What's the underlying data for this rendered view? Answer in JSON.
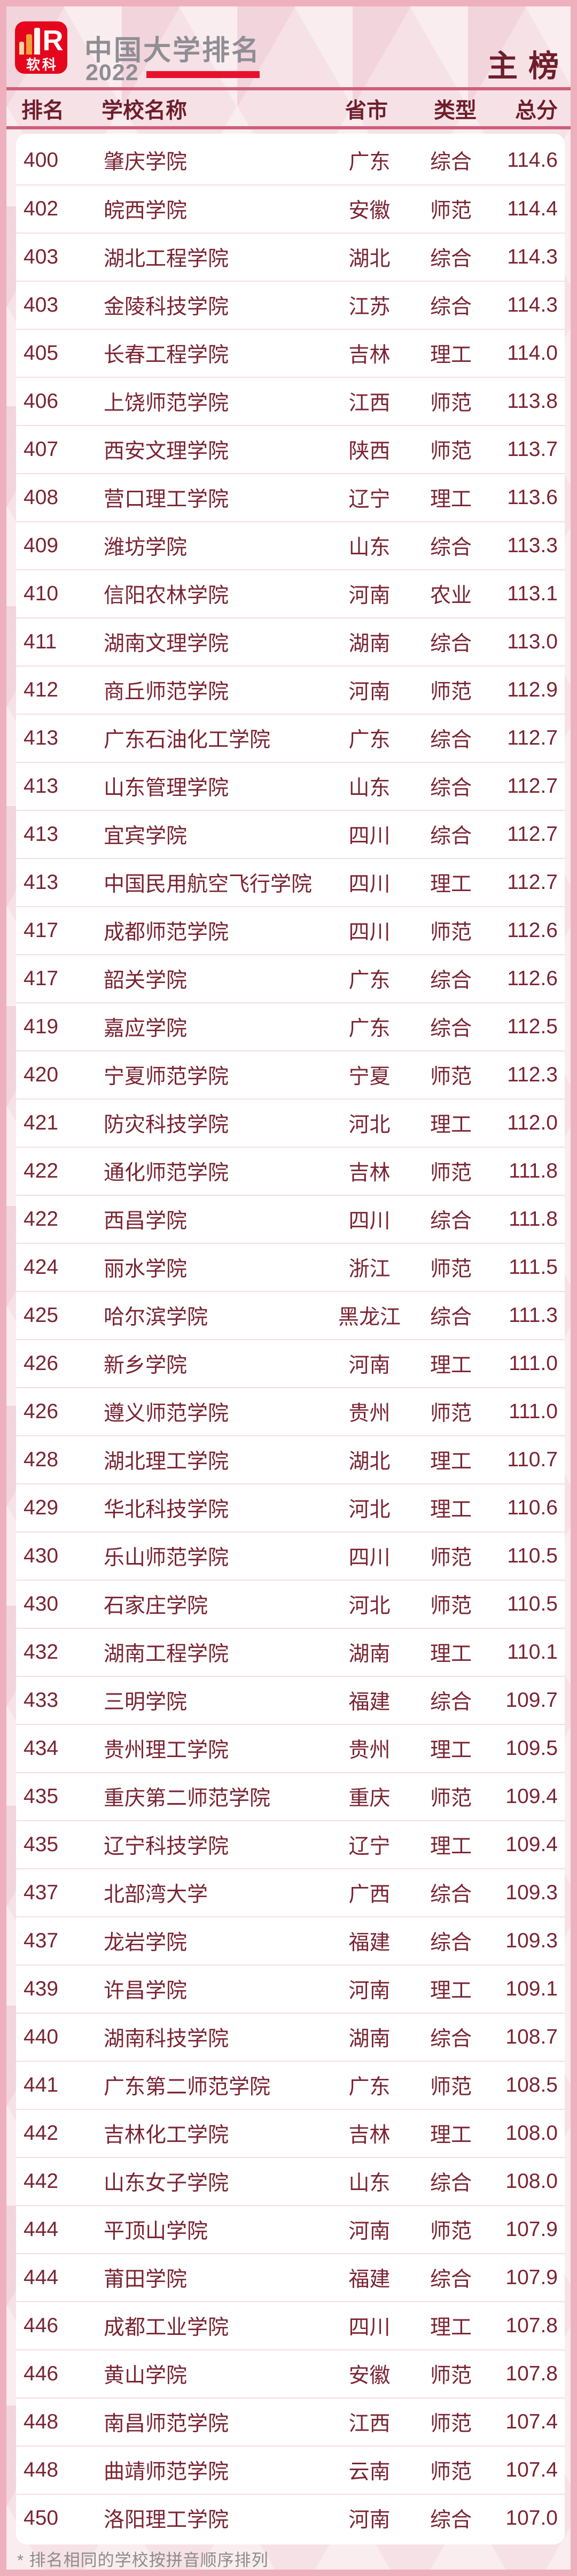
{
  "header": {
    "logo": {
      "brand": "软科",
      "letter": "R"
    },
    "title": "中国大学排名",
    "year": "2022",
    "badge": "主 榜"
  },
  "colors": {
    "logo_red": "#e5051c",
    "underline_red": "#e8112d",
    "rule_rose": "#ce6079",
    "row_text_maroon": "#7a2433",
    "header_text_maroon": "#6e1e2c",
    "title_gray": "#8e8e93",
    "note_gray": "#8c8c8c",
    "background_pink": "#f6e1e6",
    "border_pink": "#efb0be",
    "card_white": "#ffffff",
    "row_separator_pink": "#f5dde2"
  },
  "footer": {
    "note": "* 排名相同的学校按拼音顺序排列"
  },
  "chart_data": {
    "type": "table",
    "title": "中国大学排名 2022 主榜",
    "columns": [
      "排名",
      "学校名称",
      "省市",
      "类型",
      "总分"
    ],
    "rows": [
      {
        "rank": "400",
        "name": "肇庆学院",
        "province": "广东",
        "type": "综合",
        "score": "114.6"
      },
      {
        "rank": "402",
        "name": "皖西学院",
        "province": "安徽",
        "type": "师范",
        "score": "114.4"
      },
      {
        "rank": "403",
        "name": "湖北工程学院",
        "province": "湖北",
        "type": "综合",
        "score": "114.3"
      },
      {
        "rank": "403",
        "name": "金陵科技学院",
        "province": "江苏",
        "type": "综合",
        "score": "114.3"
      },
      {
        "rank": "405",
        "name": "长春工程学院",
        "province": "吉林",
        "type": "理工",
        "score": "114.0"
      },
      {
        "rank": "406",
        "name": "上饶师范学院",
        "province": "江西",
        "type": "师范",
        "score": "113.8"
      },
      {
        "rank": "407",
        "name": "西安文理学院",
        "province": "陕西",
        "type": "师范",
        "score": "113.7"
      },
      {
        "rank": "408",
        "name": "营口理工学院",
        "province": "辽宁",
        "type": "理工",
        "score": "113.6"
      },
      {
        "rank": "409",
        "name": "潍坊学院",
        "province": "山东",
        "type": "综合",
        "score": "113.3"
      },
      {
        "rank": "410",
        "name": "信阳农林学院",
        "province": "河南",
        "type": "农业",
        "score": "113.1"
      },
      {
        "rank": "411",
        "name": "湖南文理学院",
        "province": "湖南",
        "type": "综合",
        "score": "113.0"
      },
      {
        "rank": "412",
        "name": "商丘师范学院",
        "province": "河南",
        "type": "师范",
        "score": "112.9"
      },
      {
        "rank": "413",
        "name": "广东石油化工学院",
        "province": "广东",
        "type": "综合",
        "score": "112.7"
      },
      {
        "rank": "413",
        "name": "山东管理学院",
        "province": "山东",
        "type": "综合",
        "score": "112.7"
      },
      {
        "rank": "413",
        "name": "宜宾学院",
        "province": "四川",
        "type": "综合",
        "score": "112.7"
      },
      {
        "rank": "413",
        "name": "中国民用航空飞行学院",
        "province": "四川",
        "type": "理工",
        "score": "112.7"
      },
      {
        "rank": "417",
        "name": "成都师范学院",
        "province": "四川",
        "type": "师范",
        "score": "112.6"
      },
      {
        "rank": "417",
        "name": "韶关学院",
        "province": "广东",
        "type": "综合",
        "score": "112.6"
      },
      {
        "rank": "419",
        "name": "嘉应学院",
        "province": "广东",
        "type": "综合",
        "score": "112.5"
      },
      {
        "rank": "420",
        "name": "宁夏师范学院",
        "province": "宁夏",
        "type": "师范",
        "score": "112.3"
      },
      {
        "rank": "421",
        "name": "防灾科技学院",
        "province": "河北",
        "type": "理工",
        "score": "112.0"
      },
      {
        "rank": "422",
        "name": "通化师范学院",
        "province": "吉林",
        "type": "师范",
        "score": "111.8"
      },
      {
        "rank": "422",
        "name": "西昌学院",
        "province": "四川",
        "type": "综合",
        "score": "111.8"
      },
      {
        "rank": "424",
        "name": "丽水学院",
        "province": "浙江",
        "type": "师范",
        "score": "111.5"
      },
      {
        "rank": "425",
        "name": "哈尔滨学院",
        "province": "黑龙江",
        "type": "综合",
        "score": "111.3"
      },
      {
        "rank": "426",
        "name": "新乡学院",
        "province": "河南",
        "type": "理工",
        "score": "111.0"
      },
      {
        "rank": "426",
        "name": "遵义师范学院",
        "province": "贵州",
        "type": "师范",
        "score": "111.0"
      },
      {
        "rank": "428",
        "name": "湖北理工学院",
        "province": "湖北",
        "type": "理工",
        "score": "110.7"
      },
      {
        "rank": "429",
        "name": "华北科技学院",
        "province": "河北",
        "type": "理工",
        "score": "110.6"
      },
      {
        "rank": "430",
        "name": "乐山师范学院",
        "province": "四川",
        "type": "师范",
        "score": "110.5"
      },
      {
        "rank": "430",
        "name": "石家庄学院",
        "province": "河北",
        "type": "师范",
        "score": "110.5"
      },
      {
        "rank": "432",
        "name": "湖南工程学院",
        "province": "湖南",
        "type": "理工",
        "score": "110.1"
      },
      {
        "rank": "433",
        "name": "三明学院",
        "province": "福建",
        "type": "综合",
        "score": "109.7"
      },
      {
        "rank": "434",
        "name": "贵州理工学院",
        "province": "贵州",
        "type": "理工",
        "score": "109.5"
      },
      {
        "rank": "435",
        "name": "重庆第二师范学院",
        "province": "重庆",
        "type": "师范",
        "score": "109.4"
      },
      {
        "rank": "435",
        "name": "辽宁科技学院",
        "province": "辽宁",
        "type": "理工",
        "score": "109.4"
      },
      {
        "rank": "437",
        "name": "北部湾大学",
        "province": "广西",
        "type": "综合",
        "score": "109.3"
      },
      {
        "rank": "437",
        "name": "龙岩学院",
        "province": "福建",
        "type": "综合",
        "score": "109.3"
      },
      {
        "rank": "439",
        "name": "许昌学院",
        "province": "河南",
        "type": "理工",
        "score": "109.1"
      },
      {
        "rank": "440",
        "name": "湖南科技学院",
        "province": "湖南",
        "type": "综合",
        "score": "108.7"
      },
      {
        "rank": "441",
        "name": "广东第二师范学院",
        "province": "广东",
        "type": "师范",
        "score": "108.5"
      },
      {
        "rank": "442",
        "name": "吉林化工学院",
        "province": "吉林",
        "type": "理工",
        "score": "108.0"
      },
      {
        "rank": "442",
        "name": "山东女子学院",
        "province": "山东",
        "type": "综合",
        "score": "108.0"
      },
      {
        "rank": "444",
        "name": "平顶山学院",
        "province": "河南",
        "type": "师范",
        "score": "107.9"
      },
      {
        "rank": "444",
        "name": "莆田学院",
        "province": "福建",
        "type": "综合",
        "score": "107.9"
      },
      {
        "rank": "446",
        "name": "成都工业学院",
        "province": "四川",
        "type": "理工",
        "score": "107.8"
      },
      {
        "rank": "446",
        "name": "黄山学院",
        "province": "安徽",
        "type": "师范",
        "score": "107.8"
      },
      {
        "rank": "448",
        "name": "南昌师范学院",
        "province": "江西",
        "type": "师范",
        "score": "107.4"
      },
      {
        "rank": "448",
        "name": "曲靖师范学院",
        "province": "云南",
        "type": "师范",
        "score": "107.4"
      },
      {
        "rank": "450",
        "name": "洛阳理工学院",
        "province": "河南",
        "type": "综合",
        "score": "107.0"
      }
    ]
  }
}
